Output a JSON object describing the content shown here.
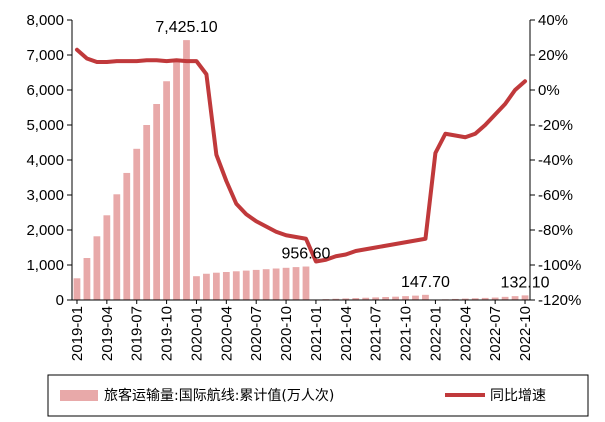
{
  "chart_data": {
    "type": "bar+line",
    "left_axis": {
      "min": 0,
      "max": 8000,
      "ticks": [
        "0",
        "1,000",
        "2,000",
        "3,000",
        "4,000",
        "5,000",
        "6,000",
        "7,000",
        "8,000"
      ]
    },
    "right_axis": {
      "min": -120,
      "max": 40,
      "ticks": [
        "-120%",
        "-100%",
        "-80%",
        "-60%",
        "-40%",
        "-20%",
        "0%",
        "20%",
        "40%"
      ]
    },
    "x_tick_labels": [
      "2019-01",
      "2019-04",
      "2019-07",
      "2019-10",
      "2020-01",
      "2020-04",
      "2020-07",
      "2020-10",
      "2021-01",
      "2021-04",
      "2021-07",
      "2021-10",
      "2022-01",
      "2022-04",
      "2022-07",
      "2022-10"
    ],
    "x_tick_months": [
      0,
      3,
      6,
      9,
      12,
      15,
      18,
      21,
      24,
      27,
      30,
      33,
      36,
      39,
      42,
      45
    ],
    "months": [
      "2019-01",
      "2019-02",
      "2019-03",
      "2019-04",
      "2019-05",
      "2019-06",
      "2019-07",
      "2019-08",
      "2019-09",
      "2019-10",
      "2019-11",
      "2019-12",
      "2020-01",
      "2020-02",
      "2020-03",
      "2020-04",
      "2020-05",
      "2020-06",
      "2020-07",
      "2020-08",
      "2020-09",
      "2020-10",
      "2020-11",
      "2020-12",
      "2021-01",
      "2021-02",
      "2021-03",
      "2021-04",
      "2021-05",
      "2021-06",
      "2021-07",
      "2021-08",
      "2021-09",
      "2021-10",
      "2021-11",
      "2021-12",
      "2022-01",
      "2022-02",
      "2022-03",
      "2022-04",
      "2022-05",
      "2022-06",
      "2022-07",
      "2022-08",
      "2022-09",
      "2022-10"
    ],
    "series": [
      {
        "name": "旅客运输量:国际航线:累计值(万人次)",
        "kind": "bar",
        "axis": "left",
        "color": "#e8a9a9",
        "values": [
          620,
          1200,
          1820,
          2420,
          3020,
          3630,
          4320,
          5000,
          5600,
          6250,
          6850,
          7425.1,
          680,
          750,
          780,
          800,
          820,
          840,
          860,
          880,
          900,
          920,
          940,
          956.6,
          15,
          25,
          35,
          45,
          55,
          65,
          75,
          85,
          95,
          110,
          125,
          147.7,
          10,
          20,
          30,
          40,
          50,
          60,
          70,
          90,
          110,
          132.1
        ]
      },
      {
        "name": "同比增速",
        "kind": "line",
        "axis": "right",
        "color": "#c0393b",
        "values": [
          23,
          18,
          16,
          16,
          16.5,
          16.5,
          16.5,
          17,
          17,
          16.5,
          17,
          16.5,
          16.5,
          9,
          -37,
          -52,
          -65,
          -71,
          -75,
          -78,
          -81,
          -83,
          -84,
          -85,
          -98,
          -97,
          -95,
          -94,
          -92,
          -91,
          -90,
          -89,
          -88,
          -87,
          -86,
          -85,
          -36,
          -25,
          -26,
          -27,
          -25,
          -20,
          -14,
          -8,
          0,
          5
        ]
      }
    ],
    "data_labels": [
      {
        "month": 11,
        "text": "7,425.10"
      },
      {
        "month": 23,
        "text": "956.60"
      },
      {
        "month": 35,
        "text": "147.70"
      },
      {
        "month": 45,
        "text": "132.10"
      }
    ],
    "legend": [
      {
        "label": "旅客运输量:国际航线:累计值(万人次)",
        "kind": "bar"
      },
      {
        "label": "同比增速",
        "kind": "line"
      }
    ],
    "legend_position": "bottom",
    "grid": false
  }
}
